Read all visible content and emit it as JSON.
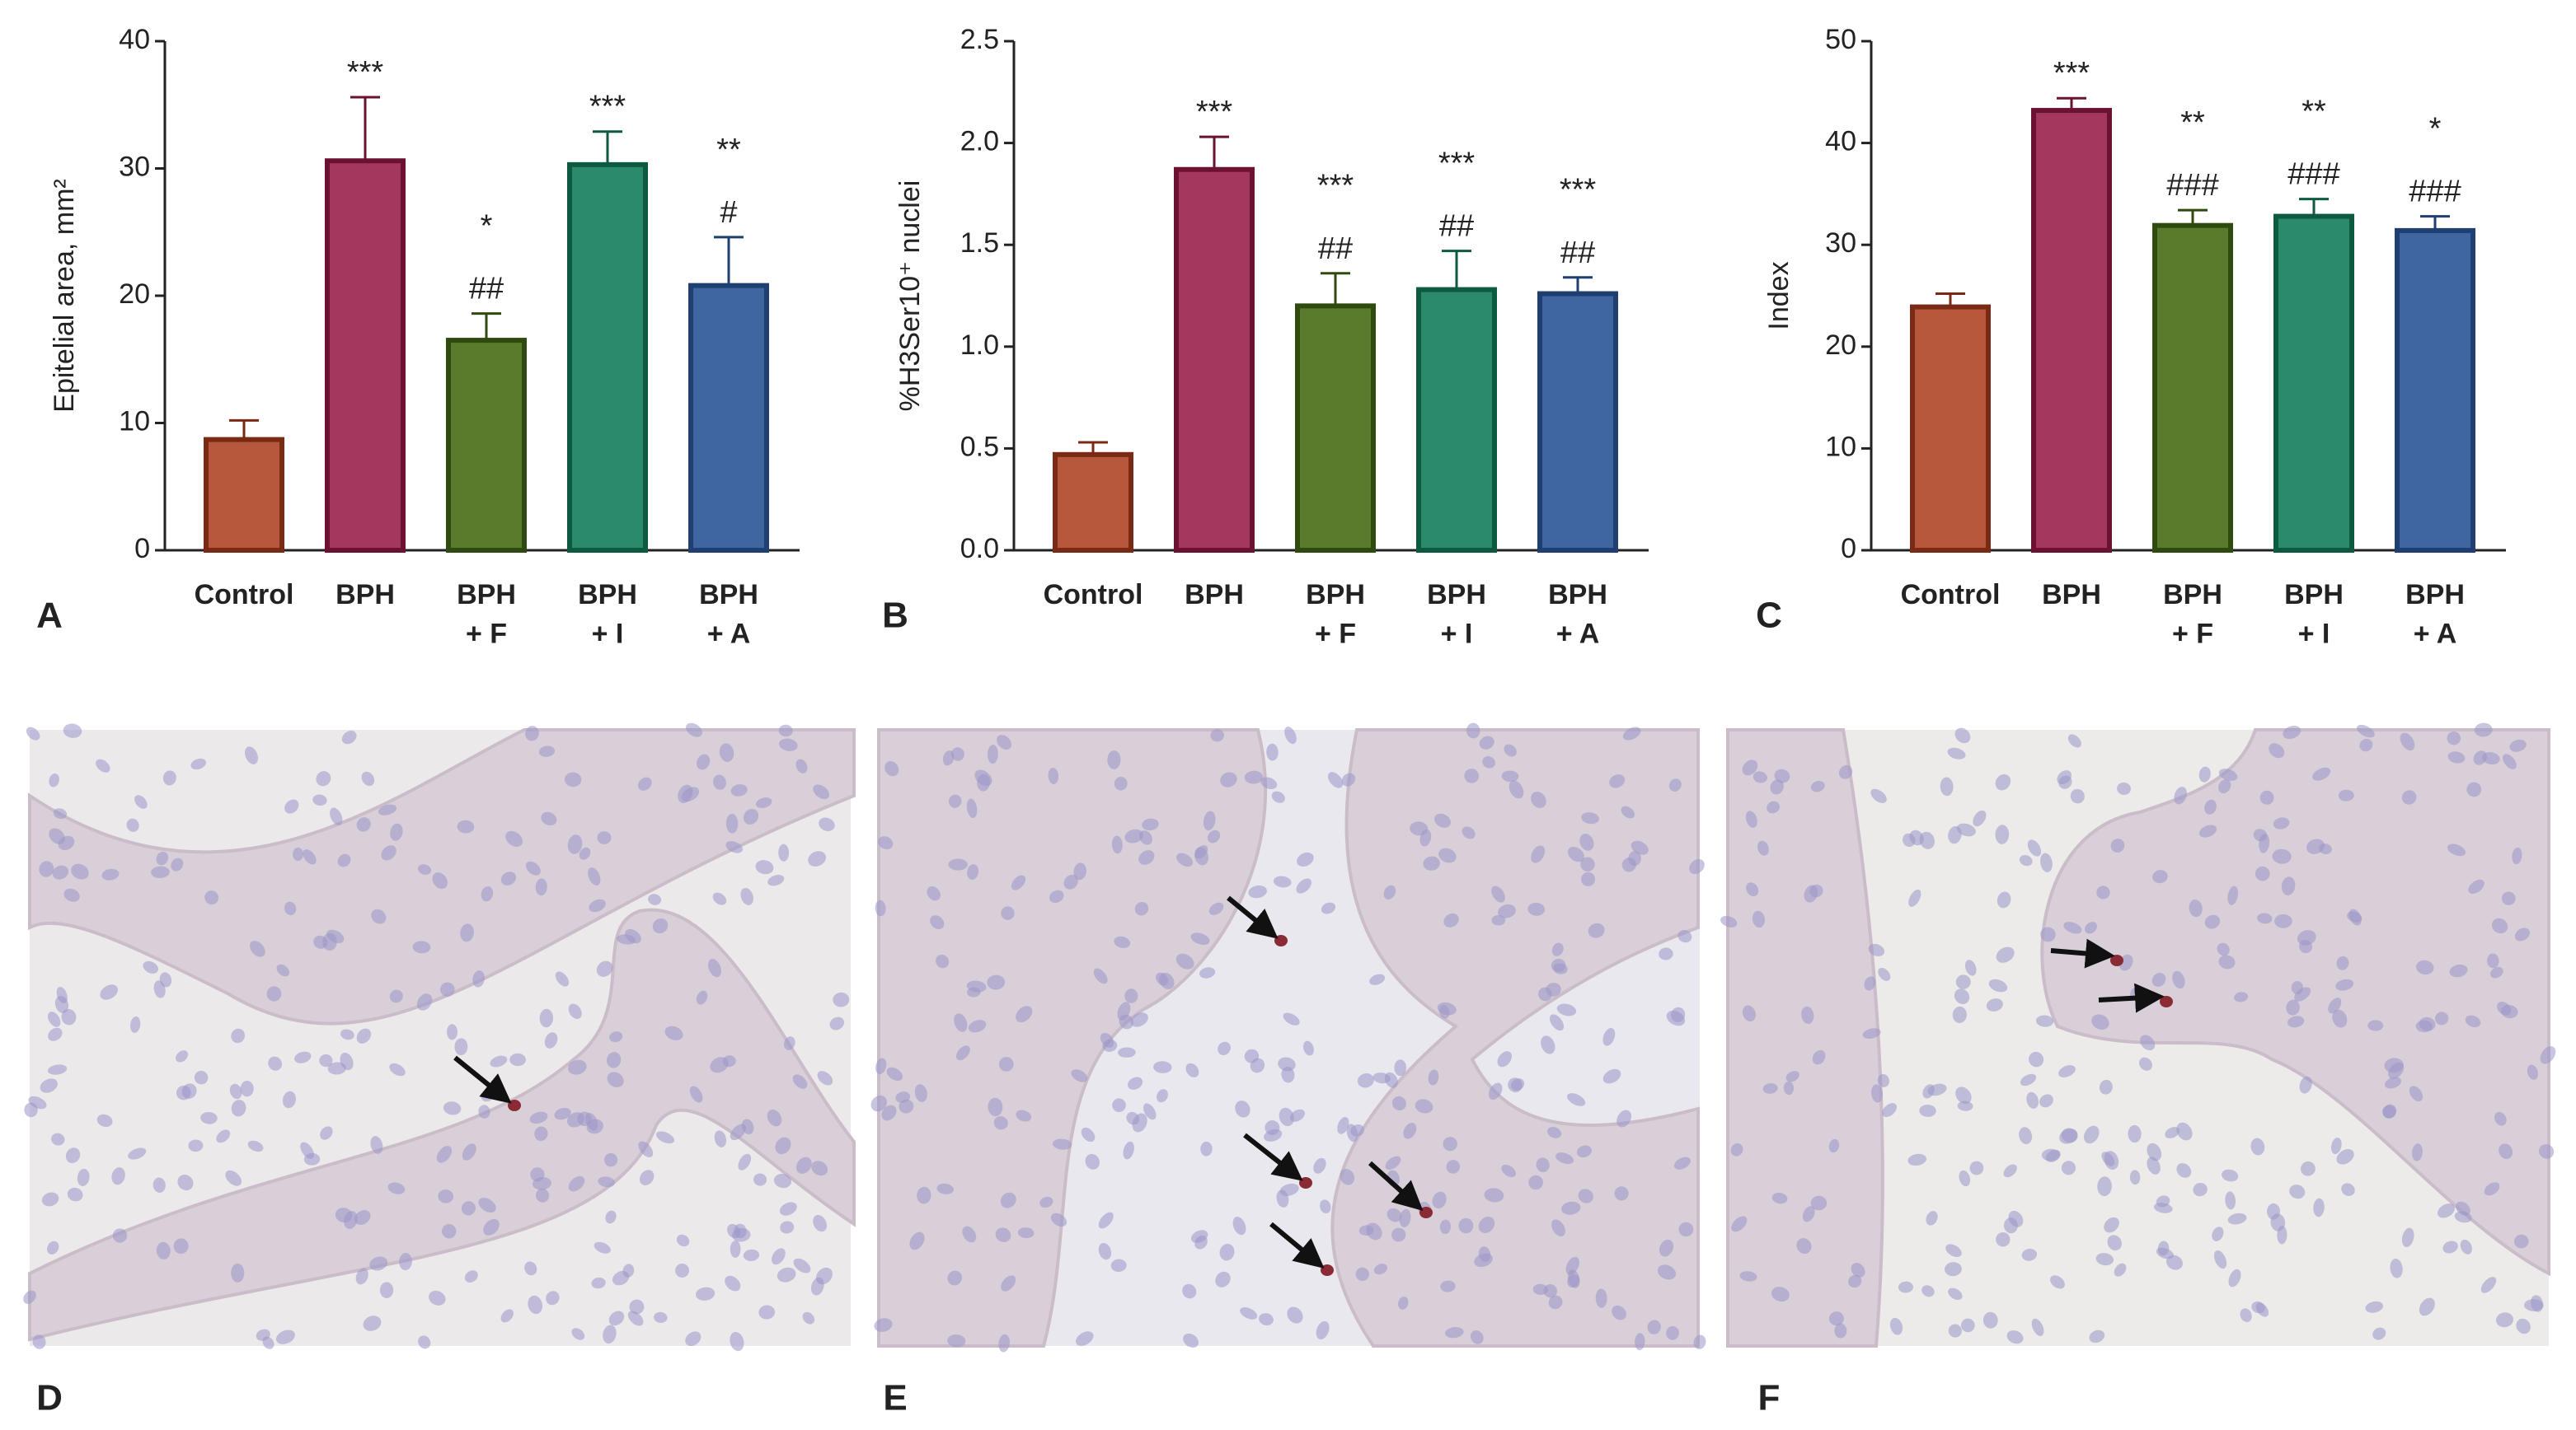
{
  "chart_data": [
    {
      "type": "bar",
      "panel_label": "A",
      "ylabel": "Epitelial area, mm²",
      "categories": [
        "Control",
        "BPH",
        "BPH\n+ F",
        "BPH\n+ I",
        "BPH\n+ A"
      ],
      "values": [
        8.7,
        30.6,
        16.5,
        30.3,
        20.8
      ],
      "errors": [
        1.5,
        5.0,
        2.1,
        2.6,
        3.8
      ],
      "annotations": [
        null,
        [
          "***"
        ],
        [
          "*",
          "##"
        ],
        [
          "***"
        ],
        [
          "**",
          "#"
        ]
      ],
      "colors": [
        "#b5583b",
        "#a3375d",
        "#5a7b2b",
        "#2b8a6b",
        "#3f66a0"
      ],
      "edge_colors": [
        "#7a2a14",
        "#6b1233",
        "#2f4a0e",
        "#0e5a40",
        "#1e3f70"
      ],
      "ylim": [
        0,
        40
      ],
      "yticks": [
        0,
        10,
        20,
        30,
        40
      ]
    },
    {
      "type": "bar",
      "panel_label": "B",
      "ylabel": "%H3Ser10⁺ nuclei",
      "categories": [
        "Control",
        "BPH",
        "BPH\n+ F",
        "BPH\n+ I",
        "BPH\n+ A"
      ],
      "values": [
        0.47,
        1.87,
        1.2,
        1.28,
        1.26
      ],
      "errors": [
        0.06,
        0.16,
        0.16,
        0.19,
        0.08
      ],
      "annotations": [
        null,
        [
          "***"
        ],
        [
          "***",
          "##"
        ],
        [
          "***",
          "##"
        ],
        [
          "***",
          "##"
        ]
      ],
      "colors": [
        "#b5583b",
        "#a3375d",
        "#5a7b2b",
        "#2b8a6b",
        "#3f66a0"
      ],
      "edge_colors": [
        "#7a2a14",
        "#6b1233",
        "#2f4a0e",
        "#0e5a40",
        "#1e3f70"
      ],
      "ylim": [
        0,
        2.5
      ],
      "yticks": [
        {
          "value": 0,
          "label": "0.0"
        },
        {
          "value": 0.5,
          "label": "0.5"
        },
        {
          "value": 1,
          "label": "1.0"
        },
        {
          "value": 1.5,
          "label": "1.5"
        },
        {
          "value": 2,
          "label": "2.0"
        },
        {
          "value": 2.5,
          "label": "2.5"
        }
      ]
    },
    {
      "type": "bar",
      "panel_label": "C",
      "ylabel": "Index",
      "categories": [
        "Control",
        "BPH",
        "BPH\n+ F",
        "BPH\n+ I",
        "BPH\n+ A"
      ],
      "values": [
        23.9,
        43.2,
        31.9,
        32.8,
        31.4
      ],
      "errors": [
        1.3,
        1.2,
        1.5,
        1.7,
        1.4
      ],
      "annotations": [
        null,
        [
          "***"
        ],
        [
          "**",
          "###"
        ],
        [
          "**",
          "###"
        ],
        [
          "*",
          "###"
        ]
      ],
      "colors": [
        "#b5583b",
        "#a3375d",
        "#5a7b2b",
        "#2b8a6b",
        "#3f66a0"
      ],
      "edge_colors": [
        "#7a2a14",
        "#6b1233",
        "#2f4a0e",
        "#0e5a40",
        "#1e3f70"
      ],
      "ylim": [
        0,
        50
      ],
      "yticks": [
        0,
        10,
        20,
        30,
        40,
        50
      ]
    }
  ],
  "images": [
    {
      "label": "D"
    },
    {
      "label": "E"
    },
    {
      "label": "F"
    }
  ]
}
